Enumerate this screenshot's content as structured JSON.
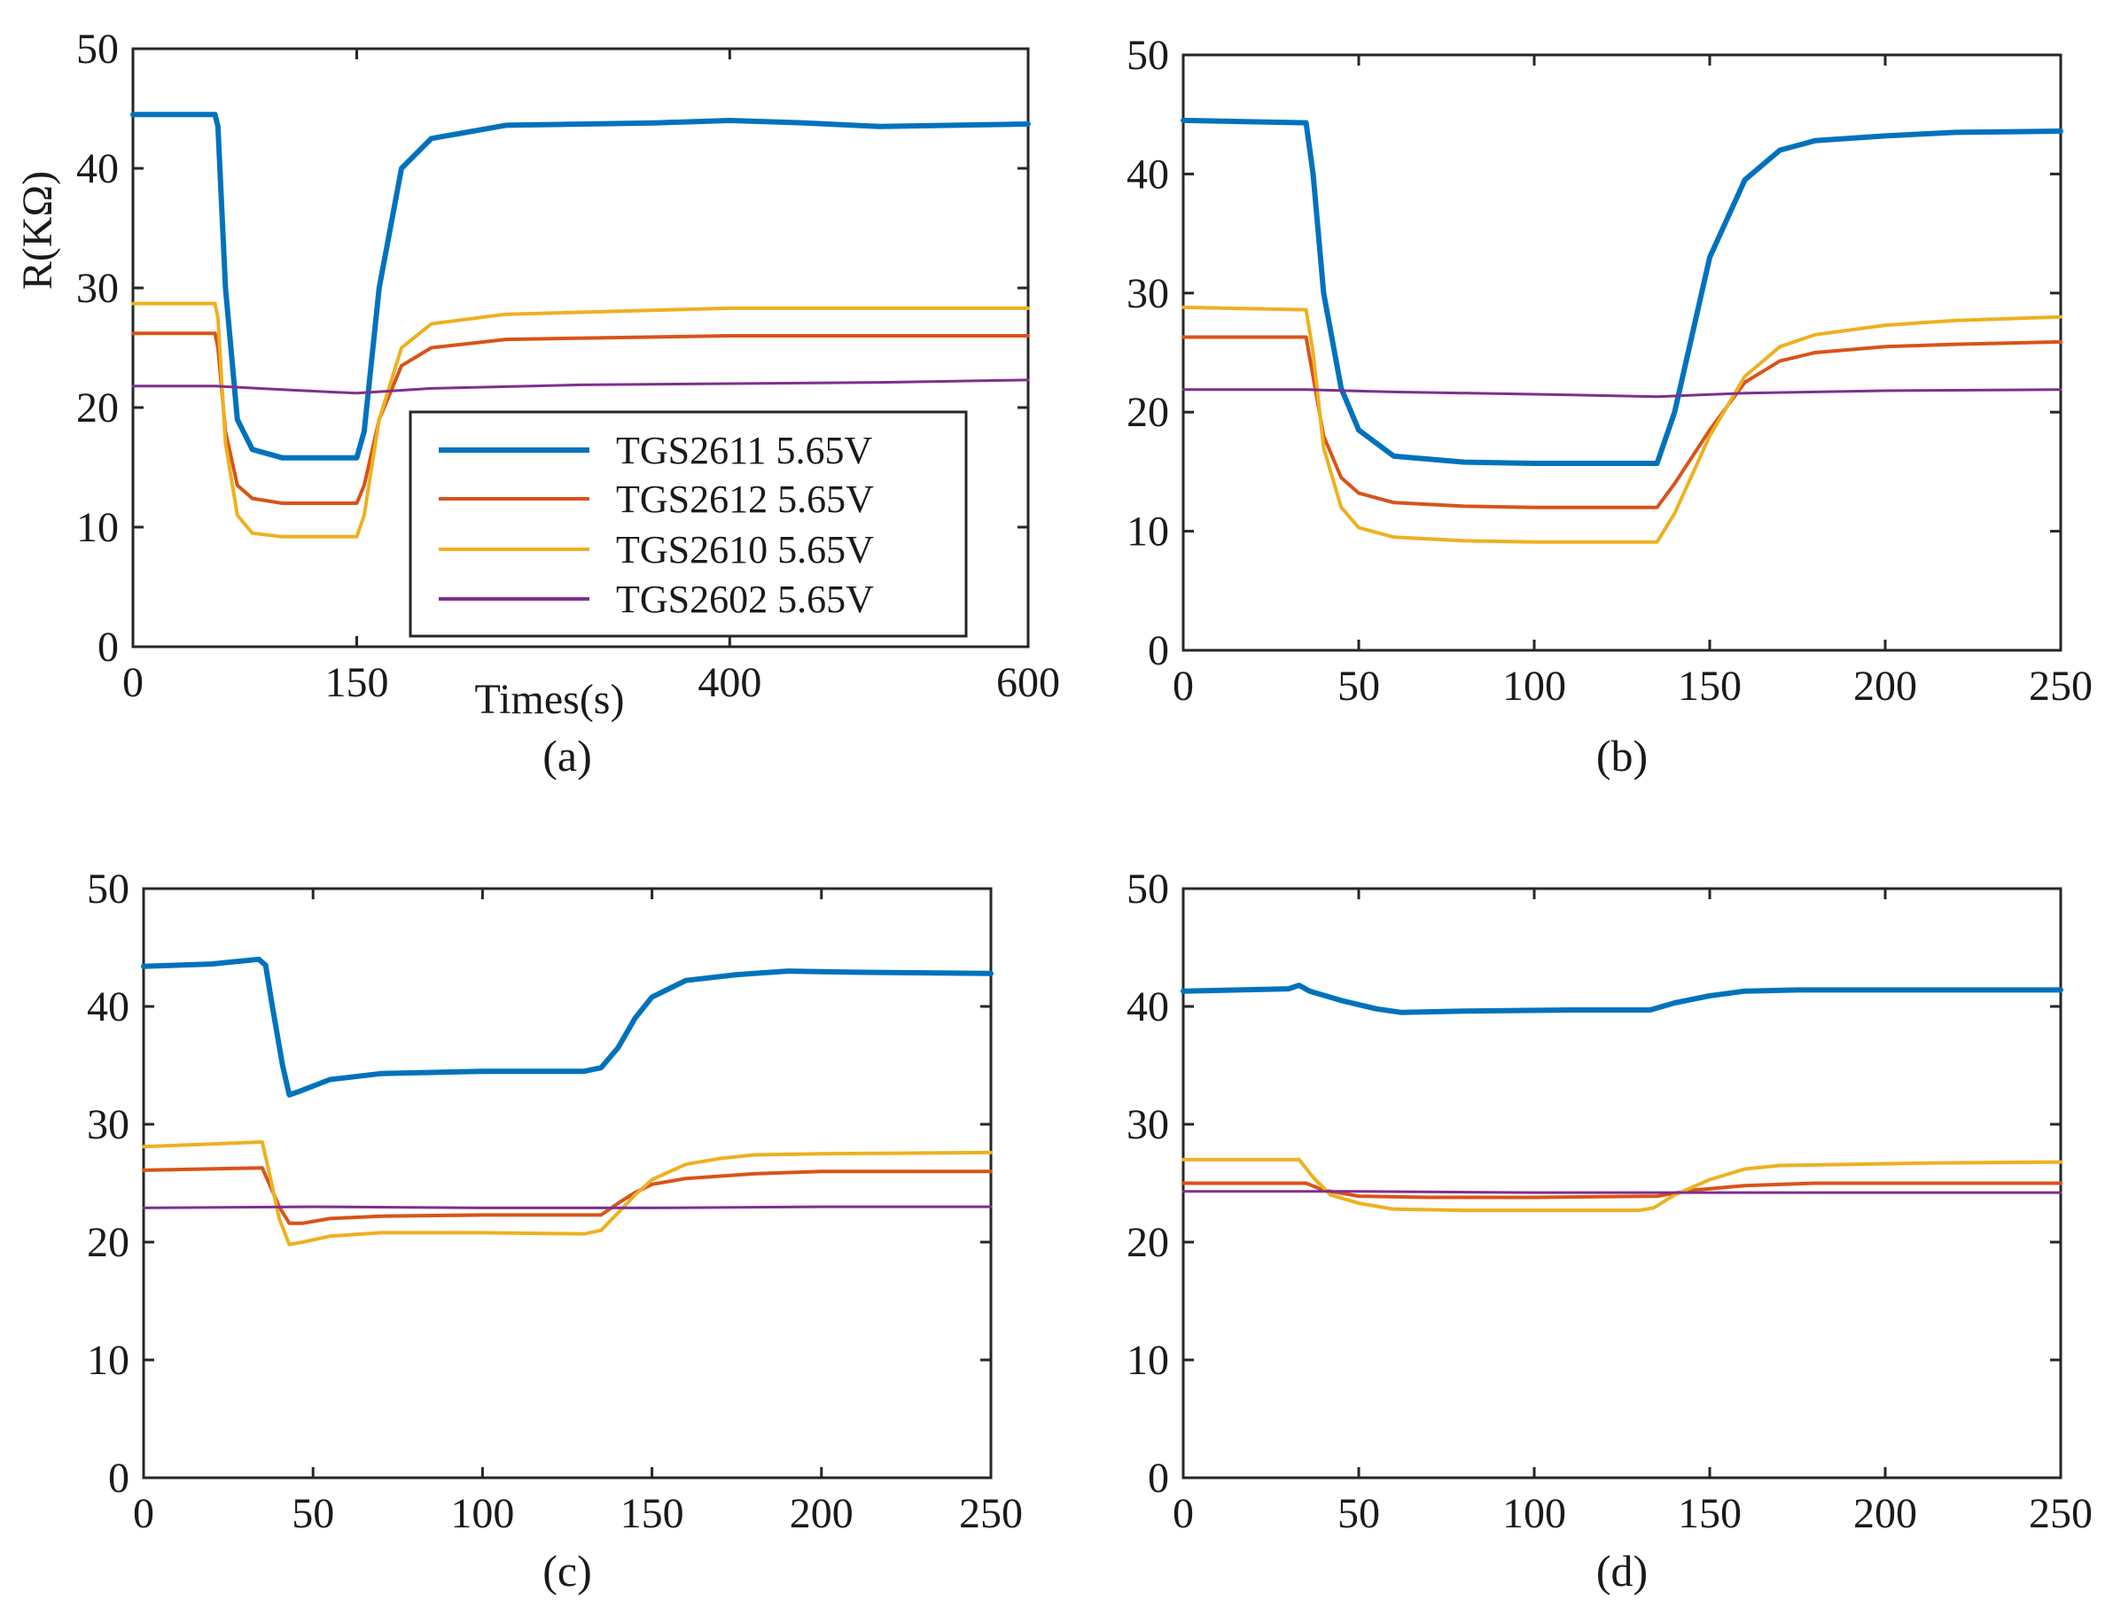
{
  "series_meta": [
    {
      "key": "tgs2611",
      "name": "TGS2611 5.65V",
      "color": "#0072BD"
    },
    {
      "key": "tgs2612",
      "name": "TGS2612 5.65V",
      "color": "#D95319"
    },
    {
      "key": "tgs2610",
      "name": "TGS2610 5.65V",
      "color": "#EDB120"
    },
    {
      "key": "tgs2602",
      "name": "TGS2602 5.65V",
      "color": "#7E2F8E"
    }
  ],
  "chart_data": [
    {
      "id": "a",
      "type": "line",
      "caption": "(a)",
      "xlabel": "Times(s)",
      "ylabel": "R(KΩ)",
      "xlim": [
        0,
        600
      ],
      "ylim": [
        0,
        50
      ],
      "xticks": [
        0,
        150,
        400,
        600
      ],
      "yticks": [
        0,
        10,
        20,
        30,
        40,
        50
      ],
      "legend": "lower-right",
      "series": [
        {
          "name": "TGS2611 5.65V",
          "x": [
            0,
            55,
            57,
            62,
            70,
            80,
            100,
            150,
            155,
            165,
            180,
            200,
            250,
            350,
            400,
            450,
            500,
            600
          ],
          "y": [
            44.5,
            44.5,
            43.5,
            30,
            19,
            16.5,
            15.8,
            15.8,
            18,
            30,
            40,
            42.5,
            43.6,
            43.8,
            44.0,
            43.8,
            43.5,
            43.7
          ]
        },
        {
          "name": "TGS2612 5.65V",
          "x": [
            0,
            55,
            57,
            62,
            70,
            80,
            100,
            150,
            155,
            165,
            180,
            200,
            250,
            400,
            600
          ],
          "y": [
            26.2,
            26.2,
            25,
            18,
            13.5,
            12.4,
            12.0,
            12.0,
            13.5,
            19,
            23.5,
            25,
            25.7,
            26.0,
            26.0
          ]
        },
        {
          "name": "TGS2610 5.65V",
          "x": [
            0,
            55,
            57,
            62,
            70,
            80,
            100,
            150,
            155,
            165,
            180,
            200,
            250,
            400,
            600
          ],
          "y": [
            28.7,
            28.7,
            27.5,
            17,
            11,
            9.5,
            9.2,
            9.2,
            11,
            19,
            25,
            27,
            27.8,
            28.3,
            28.3
          ]
        },
        {
          "name": "TGS2602 5.65V",
          "x": [
            0,
            55,
            100,
            150,
            200,
            300,
            400,
            500,
            600
          ],
          "y": [
            21.8,
            21.8,
            21.5,
            21.2,
            21.6,
            21.9,
            22.0,
            22.1,
            22.3
          ]
        }
      ]
    },
    {
      "id": "b",
      "type": "line",
      "caption": "(b)",
      "xlabel": "",
      "ylabel": "",
      "xlim": [
        0,
        250
      ],
      "ylim": [
        0,
        50
      ],
      "xticks": [
        0,
        50,
        100,
        150,
        200,
        250
      ],
      "yticks": [
        0,
        10,
        20,
        30,
        40,
        50
      ],
      "series": [
        {
          "name": "TGS2611 5.65V",
          "x": [
            0,
            35,
            37,
            40,
            45,
            50,
            60,
            80,
            100,
            135,
            140,
            150,
            160,
            170,
            180,
            200,
            220,
            250
          ],
          "y": [
            44.5,
            44.3,
            40,
            30,
            22,
            18.5,
            16.3,
            15.8,
            15.7,
            15.7,
            20,
            33,
            39.5,
            42,
            42.8,
            43.2,
            43.5,
            43.6
          ]
        },
        {
          "name": "TGS2612 5.65V",
          "x": [
            0,
            35,
            37,
            40,
            45,
            50,
            60,
            80,
            100,
            135,
            140,
            150,
            160,
            170,
            180,
            200,
            220,
            250
          ],
          "y": [
            26.3,
            26.3,
            23,
            18,
            14.5,
            13.2,
            12.4,
            12.1,
            12.0,
            12.0,
            14,
            18.5,
            22.5,
            24.3,
            25,
            25.5,
            25.7,
            25.9
          ]
        },
        {
          "name": "TGS2610 5.65V",
          "x": [
            0,
            35,
            37,
            40,
            45,
            50,
            60,
            80,
            100,
            135,
            140,
            150,
            160,
            170,
            180,
            200,
            220,
            250
          ],
          "y": [
            28.8,
            28.6,
            25,
            17,
            12,
            10.3,
            9.5,
            9.2,
            9.1,
            9.1,
            11.5,
            18,
            23,
            25.5,
            26.5,
            27.3,
            27.7,
            28.0
          ]
        },
        {
          "name": "TGS2602 5.65V",
          "x": [
            0,
            35,
            60,
            100,
            135,
            160,
            200,
            250
          ],
          "y": [
            21.9,
            21.9,
            21.7,
            21.5,
            21.3,
            21.6,
            21.8,
            21.9
          ]
        }
      ]
    },
    {
      "id": "c",
      "type": "line",
      "caption": "(c)",
      "xlabel": "",
      "ylabel": "",
      "xlim": [
        0,
        250
      ],
      "ylim": [
        0,
        50
      ],
      "xticks": [
        0,
        50,
        100,
        150,
        200,
        250
      ],
      "yticks": [
        0,
        10,
        20,
        30,
        40,
        50
      ],
      "series": [
        {
          "name": "TGS2611 5.65V",
          "x": [
            0,
            20,
            34,
            36,
            38,
            41,
            43,
            46,
            55,
            70,
            100,
            130,
            135,
            140,
            145,
            150,
            160,
            175,
            190,
            210,
            250
          ],
          "y": [
            43.4,
            43.6,
            44.0,
            43.5,
            40,
            35,
            32.5,
            32.8,
            33.8,
            34.3,
            34.5,
            34.5,
            34.8,
            36.5,
            39,
            40.8,
            42.2,
            42.7,
            43.0,
            42.9,
            42.8
          ]
        },
        {
          "name": "TGS2612 5.65V",
          "x": [
            0,
            35,
            37,
            40,
            43,
            47,
            55,
            70,
            100,
            135,
            140,
            145,
            150,
            160,
            180,
            200,
            250
          ],
          "y": [
            26.1,
            26.3,
            25,
            23,
            21.6,
            21.6,
            22,
            22.2,
            22.3,
            22.3,
            23.3,
            24.2,
            24.9,
            25.4,
            25.8,
            26.0,
            26.0
          ]
        },
        {
          "name": "TGS2610 5.65V",
          "x": [
            0,
            35,
            37,
            40,
            43,
            47,
            55,
            70,
            100,
            130,
            135,
            140,
            145,
            150,
            160,
            170,
            180,
            200,
            250
          ],
          "y": [
            28.1,
            28.5,
            26,
            22,
            19.8,
            20.0,
            20.5,
            20.8,
            20.8,
            20.7,
            21,
            22.5,
            24,
            25.3,
            26.6,
            27.1,
            27.4,
            27.5,
            27.6
          ]
        },
        {
          "name": "TGS2602 5.65V",
          "x": [
            0,
            50,
            100,
            150,
            200,
            250
          ],
          "y": [
            22.9,
            23.0,
            22.9,
            22.9,
            23.0,
            23.0
          ]
        }
      ]
    },
    {
      "id": "d",
      "type": "line",
      "caption": "(d)",
      "xlabel": "",
      "ylabel": "",
      "xlim": [
        0,
        250
      ],
      "ylim": [
        0,
        50
      ],
      "xticks": [
        0,
        50,
        100,
        150,
        200,
        250
      ],
      "yticks": [
        0,
        10,
        20,
        30,
        40,
        50
      ],
      "series": [
        {
          "name": "TGS2611 5.65V",
          "x": [
            0,
            30,
            33,
            36,
            45,
            55,
            62,
            80,
            110,
            133,
            140,
            150,
            160,
            175,
            200,
            250
          ],
          "y": [
            41.3,
            41.5,
            41.8,
            41.3,
            40.5,
            39.8,
            39.5,
            39.6,
            39.7,
            39.7,
            40.3,
            40.9,
            41.3,
            41.4,
            41.4,
            41.4
          ]
        },
        {
          "name": "TGS2612 5.65V",
          "x": [
            0,
            35,
            40,
            50,
            70,
            100,
            135,
            145,
            160,
            180,
            250
          ],
          "y": [
            25.0,
            25.0,
            24.4,
            23.9,
            23.8,
            23.8,
            23.9,
            24.4,
            24.8,
            25.0,
            25.0
          ]
        },
        {
          "name": "TGS2610 5.65V",
          "x": [
            0,
            30,
            33,
            37,
            42,
            50,
            60,
            80,
            100,
            130,
            134,
            140,
            150,
            160,
            170,
            190,
            210,
            250
          ],
          "y": [
            27.0,
            27.0,
            27.0,
            25.5,
            24,
            23.3,
            22.8,
            22.7,
            22.7,
            22.7,
            22.9,
            24,
            25.3,
            26.2,
            26.5,
            26.6,
            26.7,
            26.8
          ]
        },
        {
          "name": "TGS2602 5.65V",
          "x": [
            0,
            50,
            100,
            150,
            200,
            250
          ],
          "y": [
            24.3,
            24.3,
            24.2,
            24.2,
            24.2,
            24.2
          ]
        }
      ]
    }
  ]
}
